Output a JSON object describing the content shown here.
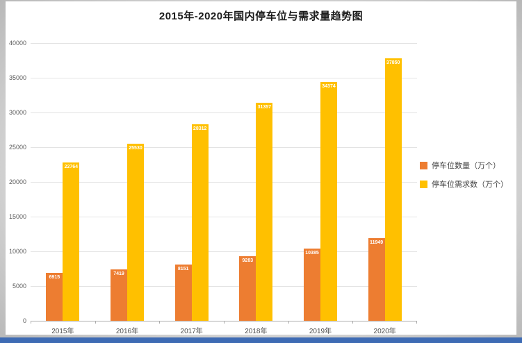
{
  "page": {
    "background_color": "#c9c9c9",
    "panel_color": "#ffffff",
    "bottom_strip_color": "#3e6bb4",
    "gridline_color": "#e3e3e3",
    "axis_color": "#ababab"
  },
  "chart_data": {
    "type": "bar",
    "title": "2015年-2020年国内停车位与需求量趋势图",
    "categories": [
      "2015年",
      "2016年",
      "2017年",
      "2018年",
      "2019年",
      "2020年"
    ],
    "series": [
      {
        "name": "停车位数量（万个）",
        "color": "#ED7D31",
        "values": [
          6915,
          7419,
          8151,
          9283,
          10385,
          11949
        ]
      },
      {
        "name": "停车位需求数（万个）",
        "color": "#FFC000",
        "values": [
          22764,
          25530,
          28312,
          31357,
          34374,
          37850
        ]
      }
    ],
    "xlabel": "",
    "ylabel": "",
    "ylim": [
      0,
      40000
    ],
    "ytick_step": 5000,
    "grid": true,
    "legend_position": "right",
    "data_labels": true,
    "data_label_color": "#ffffff"
  }
}
